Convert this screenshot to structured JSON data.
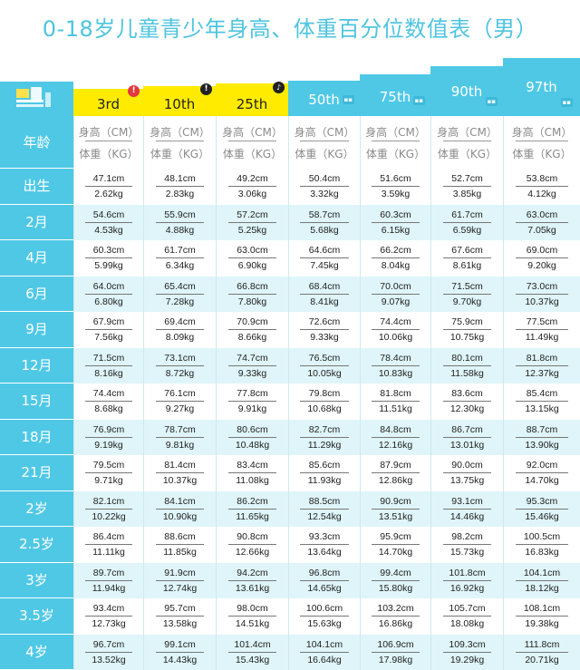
{
  "title": "0-18岁儿童青少年身高、体重百分位数值表（男）",
  "header": {
    "row_label": "年龄",
    "height_label": "身高（CM）",
    "weight_label": "体重（KG）",
    "percentiles": [
      "3rd",
      "10th",
      "25th",
      "50th",
      "75th",
      "90th",
      "97th"
    ]
  },
  "colors": {
    "accent": "#4fc8e6",
    "yellow": "#ffeb00",
    "title": "#4fc4df"
  },
  "rows": [
    {
      "age": "出生",
      "h": [
        "47.1cm",
        "48.1cm",
        "49.2cm",
        "50.4cm",
        "51.6cm",
        "52.7cm",
        "53.8cm"
      ],
      "w": [
        "2.62kg",
        "2.83kg",
        "3.06kg",
        "3.32kg",
        "3.59kg",
        "3.85kg",
        "4.12kg"
      ]
    },
    {
      "age": "2月",
      "h": [
        "54.6cm",
        "55.9cm",
        "57.2cm",
        "58.7cm",
        "60.3cm",
        "61.7cm",
        "63.0cm"
      ],
      "w": [
        "4.53kg",
        "4.88kg",
        "5.25kg",
        "5.68kg",
        "6.15kg",
        "6.59kg",
        "7.05kg"
      ]
    },
    {
      "age": "4月",
      "h": [
        "60.3cm",
        "61.7cm",
        "63.0cm",
        "64.6cm",
        "66.2cm",
        "67.6cm",
        "69.0cm"
      ],
      "w": [
        "5.99kg",
        "6.34kg",
        "6.90kg",
        "7.45kg",
        "8.04kg",
        "8.61kg",
        "9.20kg"
      ]
    },
    {
      "age": "6月",
      "h": [
        "64.0cm",
        "65.4cm",
        "66.8cm",
        "68.4cm",
        "70.0cm",
        "71.5cm",
        "73.0cm"
      ],
      "w": [
        "6.80kg",
        "7.28kg",
        "7.80kg",
        "8.41kg",
        "9.07kg",
        "9.70kg",
        "10.37kg"
      ]
    },
    {
      "age": "9月",
      "h": [
        "67.9cm",
        "69.4cm",
        "70.9cm",
        "72.6cm",
        "74.4cm",
        "75.9cm",
        "77.5cm"
      ],
      "w": [
        "7.56kg",
        "8.09kg",
        "8.66kg",
        "9.33kg",
        "10.06kg",
        "10.75kg",
        "11.49kg"
      ]
    },
    {
      "age": "12月",
      "h": [
        "71.5cm",
        "73.1cm",
        "74.7cm",
        "76.5cm",
        "78.4cm",
        "80.1cm",
        "81.8cm"
      ],
      "w": [
        "8.16kg",
        "8.72kg",
        "9.33kg",
        "10.05kg",
        "10.83kg",
        "11.58kg",
        "12.37kg"
      ]
    },
    {
      "age": "15月",
      "h": [
        "74.4cm",
        "76.1cm",
        "77.8cm",
        "79.8cm",
        "81.8cm",
        "83.6cm",
        "85.4cm"
      ],
      "w": [
        "8.68kg",
        "9.27kg",
        "9.91kg",
        "10.68kg",
        "11.51kg",
        "12.30kg",
        "13.15kg"
      ]
    },
    {
      "age": "18月",
      "h": [
        "76.9cm",
        "78.7cm",
        "80.6cm",
        "82.7cm",
        "84.8cm",
        "86.7cm",
        "88.7cm"
      ],
      "w": [
        "9.19kg",
        "9.81kg",
        "10.48kg",
        "11.29kg",
        "12.16kg",
        "13.01kg",
        "13.90kg"
      ]
    },
    {
      "age": "21月",
      "h": [
        "79.5cm",
        "81.4cm",
        "83.4cm",
        "85.6cm",
        "87.9cm",
        "90.0cm",
        "92.0cm"
      ],
      "w": [
        "9.71kg",
        "10.37kg",
        "11.08kg",
        "11.93kg",
        "12.86kg",
        "13.75kg",
        "14.70kg"
      ]
    },
    {
      "age": "2岁",
      "h": [
        "82.1cm",
        "84.1cm",
        "86.2cm",
        "88.5cm",
        "90.9cm",
        "93.1cm",
        "95.3cm"
      ],
      "w": [
        "10.22kg",
        "10.90kg",
        "11.65kg",
        "12.54kg",
        "13.51kg",
        "14.46kg",
        "15.46kg"
      ]
    },
    {
      "age": "2.5岁",
      "h": [
        "86.4cm",
        "88.6cm",
        "90.8cm",
        "93.3cm",
        "95.9cm",
        "98.2cm",
        "100.5cm"
      ],
      "w": [
        "11.11kg",
        "11.85kg",
        "12.66kg",
        "13.64kg",
        "14.70kg",
        "15.73kg",
        "16.83kg"
      ]
    },
    {
      "age": "3岁",
      "h": [
        "89.7cm",
        "91.9cm",
        "94.2cm",
        "96.8cm",
        "99.4cm",
        "101.8cm",
        "104.1cm"
      ],
      "w": [
        "11.94kg",
        "12.74kg",
        "13.61kg",
        "14.65kg",
        "15.80kg",
        "16.92kg",
        "18.12kg"
      ]
    },
    {
      "age": "3.5岁",
      "h": [
        "93.4cm",
        "95.7cm",
        "98.0cm",
        "100.6cm",
        "103.2cm",
        "105.7cm",
        "108.1cm"
      ],
      "w": [
        "12.73kg",
        "13.58kg",
        "14.51kg",
        "15.63kg",
        "16.86kg",
        "18.08kg",
        "19.38kg"
      ]
    },
    {
      "age": "4岁",
      "h": [
        "96.7cm",
        "99.1cm",
        "101.4cm",
        "104.1cm",
        "106.9cm",
        "109.3cm",
        "111.8cm"
      ],
      "w": [
        "13.52kg",
        "14.43kg",
        "15.43kg",
        "16.64kg",
        "17.98kg",
        "19.29kg",
        "20.71kg"
      ]
    }
  ]
}
